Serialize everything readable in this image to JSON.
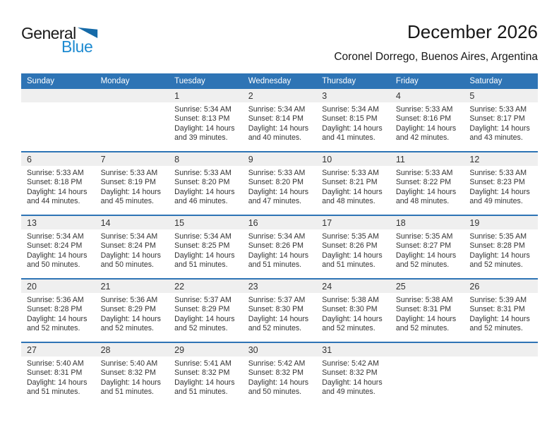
{
  "logo": {
    "word1": "General",
    "word2": "Blue"
  },
  "header": {
    "title": "December 2026",
    "subtitle": "Coronel Dorrego, Buenos Aires, Argentina"
  },
  "colors": {
    "header_blue": "#2E74B5",
    "band_gray": "#EFEFEF",
    "logo_blue": "#1E8BD1",
    "triangle_blue": "#156AA8"
  },
  "calendar": {
    "weekday_headers": [
      "Sunday",
      "Monday",
      "Tuesday",
      "Wednesday",
      "Thursday",
      "Friday",
      "Saturday"
    ],
    "labels": {
      "sunrise": "Sunrise:",
      "sunset": "Sunset:",
      "daylight": "Daylight:"
    },
    "weeks": [
      [
        null,
        null,
        {
          "day": "1",
          "sunrise": "5:34 AM",
          "sunset": "8:13 PM",
          "daylight": "14 hours",
          "daylight2": "and 39 minutes."
        },
        {
          "day": "2",
          "sunrise": "5:34 AM",
          "sunset": "8:14 PM",
          "daylight": "14 hours",
          "daylight2": "and 40 minutes."
        },
        {
          "day": "3",
          "sunrise": "5:34 AM",
          "sunset": "8:15 PM",
          "daylight": "14 hours",
          "daylight2": "and 41 minutes."
        },
        {
          "day": "4",
          "sunrise": "5:33 AM",
          "sunset": "8:16 PM",
          "daylight": "14 hours",
          "daylight2": "and 42 minutes."
        },
        {
          "day": "5",
          "sunrise": "5:33 AM",
          "sunset": "8:17 PM",
          "daylight": "14 hours",
          "daylight2": "and 43 minutes."
        }
      ],
      [
        {
          "day": "6",
          "sunrise": "5:33 AM",
          "sunset": "8:18 PM",
          "daylight": "14 hours",
          "daylight2": "and 44 minutes."
        },
        {
          "day": "7",
          "sunrise": "5:33 AM",
          "sunset": "8:19 PM",
          "daylight": "14 hours",
          "daylight2": "and 45 minutes."
        },
        {
          "day": "8",
          "sunrise": "5:33 AM",
          "sunset": "8:20 PM",
          "daylight": "14 hours",
          "daylight2": "and 46 minutes."
        },
        {
          "day": "9",
          "sunrise": "5:33 AM",
          "sunset": "8:20 PM",
          "daylight": "14 hours",
          "daylight2": "and 47 minutes."
        },
        {
          "day": "10",
          "sunrise": "5:33 AM",
          "sunset": "8:21 PM",
          "daylight": "14 hours",
          "daylight2": "and 48 minutes."
        },
        {
          "day": "11",
          "sunrise": "5:33 AM",
          "sunset": "8:22 PM",
          "daylight": "14 hours",
          "daylight2": "and 48 minutes."
        },
        {
          "day": "12",
          "sunrise": "5:33 AM",
          "sunset": "8:23 PM",
          "daylight": "14 hours",
          "daylight2": "and 49 minutes."
        }
      ],
      [
        {
          "day": "13",
          "sunrise": "5:34 AM",
          "sunset": "8:24 PM",
          "daylight": "14 hours",
          "daylight2": "and 50 minutes."
        },
        {
          "day": "14",
          "sunrise": "5:34 AM",
          "sunset": "8:24 PM",
          "daylight": "14 hours",
          "daylight2": "and 50 minutes."
        },
        {
          "day": "15",
          "sunrise": "5:34 AM",
          "sunset": "8:25 PM",
          "daylight": "14 hours",
          "daylight2": "and 51 minutes."
        },
        {
          "day": "16",
          "sunrise": "5:34 AM",
          "sunset": "8:26 PM",
          "daylight": "14 hours",
          "daylight2": "and 51 minutes."
        },
        {
          "day": "17",
          "sunrise": "5:35 AM",
          "sunset": "8:26 PM",
          "daylight": "14 hours",
          "daylight2": "and 51 minutes."
        },
        {
          "day": "18",
          "sunrise": "5:35 AM",
          "sunset": "8:27 PM",
          "daylight": "14 hours",
          "daylight2": "and 52 minutes."
        },
        {
          "day": "19",
          "sunrise": "5:35 AM",
          "sunset": "8:28 PM",
          "daylight": "14 hours",
          "daylight2": "and 52 minutes."
        }
      ],
      [
        {
          "day": "20",
          "sunrise": "5:36 AM",
          "sunset": "8:28 PM",
          "daylight": "14 hours",
          "daylight2": "and 52 minutes."
        },
        {
          "day": "21",
          "sunrise": "5:36 AM",
          "sunset": "8:29 PM",
          "daylight": "14 hours",
          "daylight2": "and 52 minutes."
        },
        {
          "day": "22",
          "sunrise": "5:37 AM",
          "sunset": "8:29 PM",
          "daylight": "14 hours",
          "daylight2": "and 52 minutes."
        },
        {
          "day": "23",
          "sunrise": "5:37 AM",
          "sunset": "8:30 PM",
          "daylight": "14 hours",
          "daylight2": "and 52 minutes."
        },
        {
          "day": "24",
          "sunrise": "5:38 AM",
          "sunset": "8:30 PM",
          "daylight": "14 hours",
          "daylight2": "and 52 minutes."
        },
        {
          "day": "25",
          "sunrise": "5:38 AM",
          "sunset": "8:31 PM",
          "daylight": "14 hours",
          "daylight2": "and 52 minutes."
        },
        {
          "day": "26",
          "sunrise": "5:39 AM",
          "sunset": "8:31 PM",
          "daylight": "14 hours",
          "daylight2": "and 52 minutes."
        }
      ],
      [
        {
          "day": "27",
          "sunrise": "5:40 AM",
          "sunset": "8:31 PM",
          "daylight": "14 hours",
          "daylight2": "and 51 minutes."
        },
        {
          "day": "28",
          "sunrise": "5:40 AM",
          "sunset": "8:32 PM",
          "daylight": "14 hours",
          "daylight2": "and 51 minutes."
        },
        {
          "day": "29",
          "sunrise": "5:41 AM",
          "sunset": "8:32 PM",
          "daylight": "14 hours",
          "daylight2": "and 51 minutes."
        },
        {
          "day": "30",
          "sunrise": "5:42 AM",
          "sunset": "8:32 PM",
          "daylight": "14 hours",
          "daylight2": "and 50 minutes."
        },
        {
          "day": "31",
          "sunrise": "5:42 AM",
          "sunset": "8:32 PM",
          "daylight": "14 hours",
          "daylight2": "and 49 minutes."
        },
        null,
        null
      ]
    ]
  }
}
